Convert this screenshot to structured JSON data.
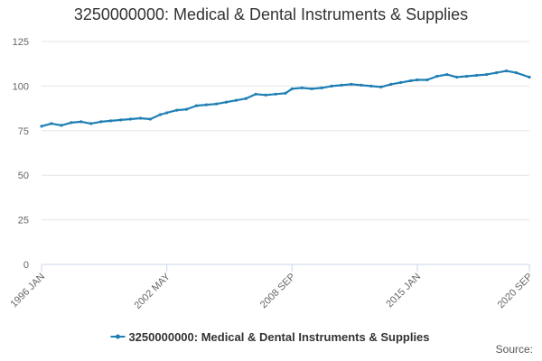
{
  "chart_data": {
    "type": "line",
    "title": "3250000000: Medical & Dental Instruments & Supplies",
    "xlabel": "",
    "ylabel": "",
    "ylim": [
      0,
      125
    ],
    "yticks": [
      0,
      25,
      50,
      75,
      100,
      125
    ],
    "x_tick_labels": [
      "1996 JAN",
      "2002 MAY",
      "2008 SEP",
      "2015 JAN",
      "2020 SEP"
    ],
    "x_tick_dates": [
      "1996-01",
      "2002-05",
      "2008-09",
      "2015-01",
      "2020-09"
    ],
    "grid": true,
    "legend_position": "bottom",
    "source": "Source:",
    "color": "#1f7fb5",
    "series": [
      {
        "name": "3250000000: Medical & Dental Instruments & Supplies",
        "x": [
          "1996-01",
          "1996-07",
          "1997-01",
          "1997-07",
          "1998-01",
          "1998-07",
          "1999-01",
          "1999-07",
          "2000-01",
          "2000-07",
          "2001-01",
          "2001-07",
          "2002-01",
          "2002-05",
          "2002-11",
          "2003-05",
          "2003-11",
          "2004-05",
          "2004-11",
          "2005-05",
          "2005-11",
          "2006-05",
          "2006-11",
          "2007-05",
          "2007-11",
          "2008-05",
          "2008-09",
          "2009-03",
          "2009-09",
          "2010-03",
          "2010-09",
          "2011-03",
          "2011-09",
          "2012-03",
          "2012-09",
          "2013-03",
          "2013-09",
          "2014-03",
          "2014-09",
          "2015-01",
          "2015-07",
          "2016-01",
          "2016-07",
          "2017-01",
          "2017-07",
          "2018-01",
          "2018-07",
          "2019-01",
          "2019-07",
          "2020-01",
          "2020-09"
        ],
        "values": [
          77.5,
          79,
          78,
          79.5,
          80,
          79,
          80,
          80.5,
          81,
          81.5,
          82,
          81.5,
          84,
          85,
          86.5,
          87,
          89,
          89.5,
          90,
          91,
          92,
          93,
          95.5,
          95,
          95.5,
          96,
          98.5,
          99,
          98.5,
          99,
          100,
          100.5,
          101,
          100.5,
          100,
          99.5,
          101,
          102,
          103,
          103.5,
          103.5,
          105.5,
          106.5,
          105,
          105.5,
          106,
          106.5,
          107.5,
          108.5,
          107.5,
          105
        ]
      }
    ]
  }
}
